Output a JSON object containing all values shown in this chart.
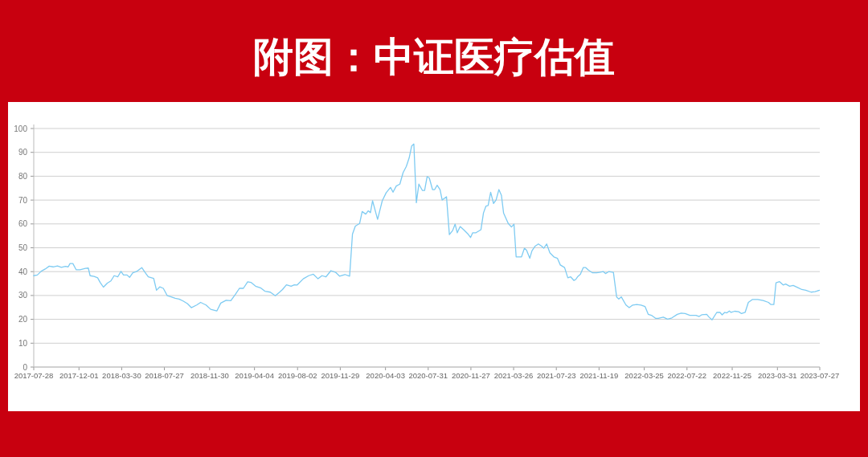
{
  "chart_data": {
    "type": "line",
    "title": "附图：中证医疗估值",
    "xlim": [
      "2017-07-28",
      "2023-07-27"
    ],
    "xticks": [
      "2017-07-28",
      "2017-12-01",
      "2018-03-30",
      "2018-07-27",
      "2018-11-30",
      "2019-04-04",
      "2019-08-02",
      "2019-11-29",
      "2020-04-03",
      "2020-07-31",
      "2020-11-27",
      "2021-03-26",
      "2021-07-23",
      "2021-11-19",
      "2022-03-25",
      "2022-07-22",
      "2022-11-25",
      "2023-03-31",
      "2023-07-27"
    ],
    "ylim": [
      0,
      100
    ],
    "yticks": [
      0,
      10,
      20,
      30,
      40,
      50,
      60,
      70,
      80,
      90,
      100
    ],
    "grid": "y",
    "x": [
      "2017-07-28",
      "2017-08-07",
      "2017-08-18",
      "2017-08-29",
      "2017-09-09",
      "2017-09-20",
      "2017-10-02",
      "2017-10-13",
      "2017-10-24",
      "2017-11-01",
      "2017-11-06",
      "2017-11-14",
      "2017-11-23",
      "2017-12-04",
      "2017-12-19",
      "2017-12-27",
      "2018-01-01",
      "2018-01-12",
      "2018-01-22",
      "2018-01-29",
      "2018-02-07",
      "2018-02-18",
      "2018-02-28",
      "2018-03-09",
      "2018-03-19",
      "2018-03-28",
      "2018-04-04",
      "2018-04-14",
      "2018-04-21",
      "2018-04-30",
      "2018-05-10",
      "2018-05-25",
      "2018-06-03",
      "2018-06-12",
      "2018-06-27",
      "2018-07-05",
      "2018-07-14",
      "2018-07-24",
      "2018-08-04",
      "2018-08-15",
      "2018-08-26",
      "2018-09-06",
      "2018-09-17",
      "2018-09-29",
      "2018-10-10",
      "2018-10-25",
      "2018-11-05",
      "2018-11-20",
      "2018-12-03",
      "2018-12-20",
      "2018-12-31",
      "2019-01-15",
      "2019-01-28",
      "2019-02-10",
      "2019-02-21",
      "2019-03-04",
      "2019-03-16",
      "2019-03-25",
      "2019-04-07",
      "2019-04-22",
      "2019-05-03",
      "2019-05-18",
      "2019-06-01",
      "2019-06-13",
      "2019-06-21",
      "2019-07-02",
      "2019-07-15",
      "2019-07-24",
      "2019-08-01",
      "2019-08-18",
      "2019-09-02",
      "2019-09-15",
      "2019-09-28",
      "2019-10-09",
      "2019-10-20",
      "2019-11-03",
      "2019-11-16",
      "2019-11-27",
      "2019-12-12",
      "2019-12-25",
      "2020-01-02",
      "2020-01-10",
      "2020-01-22",
      "2020-01-29",
      "2020-02-08",
      "2020-02-15",
      "2020-02-21",
      "2020-02-27",
      "2020-03-12",
      "2020-03-25",
      "2020-04-05",
      "2020-04-17",
      "2020-04-24",
      "2020-05-03",
      "2020-05-13",
      "2020-05-22",
      "2020-05-31",
      "2020-06-08",
      "2020-06-15",
      "2020-06-21",
      "2020-06-28",
      "2020-07-05",
      "2020-07-15",
      "2020-07-21",
      "2020-07-28",
      "2020-08-03",
      "2020-08-12",
      "2020-08-18",
      "2020-08-25",
      "2020-09-02",
      "2020-09-08",
      "2020-09-20",
      "2020-09-28",
      "2020-10-07",
      "2020-10-14",
      "2020-10-20",
      "2020-10-28",
      "2020-11-08",
      "2020-11-18",
      "2020-11-26",
      "2020-12-02",
      "2020-12-11",
      "2020-12-25",
      "2021-01-01",
      "2021-01-08",
      "2021-01-14",
      "2021-01-21",
      "2021-01-29",
      "2021-02-05",
      "2021-02-13",
      "2021-02-20",
      "2021-02-26",
      "2021-03-11",
      "2021-03-20",
      "2021-03-27",
      "2021-04-02",
      "2021-04-17",
      "2021-04-25",
      "2021-05-01",
      "2021-05-10",
      "2021-05-16",
      "2021-05-25",
      "2021-06-03",
      "2021-06-12",
      "2021-06-18",
      "2021-06-26",
      "2021-07-05",
      "2021-07-16",
      "2021-07-26",
      "2021-08-03",
      "2021-08-15",
      "2021-08-24",
      "2021-09-01",
      "2021-09-10",
      "2021-09-15",
      "2021-09-21",
      "2021-09-28",
      "2021-10-06",
      "2021-10-13",
      "2021-10-21",
      "2021-11-01",
      "2021-11-12",
      "2021-11-20",
      "2021-12-01",
      "2021-12-07",
      "2021-12-16",
      "2021-12-29",
      "2022-01-07",
      "2022-01-13",
      "2022-01-20",
      "2022-02-02",
      "2022-02-11",
      "2022-02-21",
      "2022-03-04",
      "2022-03-16",
      "2022-03-27",
      "2022-04-05",
      "2022-04-14",
      "2022-04-26",
      "2022-05-03",
      "2022-05-17",
      "2022-05-29",
      "2022-06-10",
      "2022-06-25",
      "2022-07-06",
      "2022-07-17",
      "2022-07-30",
      "2022-08-16",
      "2022-08-25",
      "2022-09-01",
      "2022-09-15",
      "2022-09-21",
      "2022-09-30",
      "2022-10-13",
      "2022-10-22",
      "2022-10-28",
      "2022-11-04",
      "2022-11-10",
      "2022-11-17",
      "2022-11-22",
      "2022-12-02",
      "2022-12-13",
      "2022-12-21",
      "2022-12-31",
      "2023-01-09",
      "2023-01-20",
      "2023-02-04",
      "2023-02-19",
      "2023-03-06",
      "2023-03-13",
      "2023-03-21",
      "2023-03-27",
      "2023-04-06",
      "2023-04-16",
      "2023-04-23",
      "2023-05-04",
      "2023-05-14",
      "2023-05-27",
      "2023-06-07",
      "2023-06-18",
      "2023-07-03",
      "2023-07-14",
      "2023-07-26"
    ],
    "series": [
      {
        "color": "#7ecbf2",
        "values": [
          38.3,
          38.6,
          40.2,
          41.1,
          42.3,
          42,
          42.4,
          41.8,
          42.2,
          42,
          43.4,
          43.4,
          40.8,
          40.8,
          41.4,
          41.5,
          38.3,
          38,
          37.4,
          35.5,
          33.5,
          35.2,
          36.1,
          38.3,
          37.8,
          40.1,
          38.6,
          38.6,
          37.6,
          39.5,
          40,
          41.7,
          39.7,
          37.8,
          37.2,
          32.2,
          33.6,
          33,
          29.9,
          29.4,
          28.8,
          28.5,
          27.7,
          26.6,
          24.9,
          26,
          27.1,
          26,
          24.2,
          23.5,
          26.8,
          28,
          27.8,
          30.5,
          33,
          33,
          35.7,
          35.5,
          33.9,
          33.1,
          31.8,
          31.4,
          29.9,
          31.4,
          32.5,
          34.5,
          33.9,
          34.5,
          34.4,
          37,
          38.3,
          38.9,
          37,
          38.3,
          37.8,
          40.4,
          39.7,
          38.1,
          38.8,
          38.1,
          55.7,
          59.1,
          60.2,
          65.2,
          64.1,
          65.5,
          64.7,
          69.7,
          61.9,
          69.7,
          73.1,
          75.3,
          73.3,
          75.9,
          76.7,
          81.5,
          84.1,
          87.7,
          92.7,
          93.5,
          68.9,
          76.7,
          74,
          74,
          79.8,
          79.3,
          74.4,
          74.4,
          76.2,
          74.4,
          70,
          71.4,
          55.5,
          57.2,
          59.9,
          56.3,
          58.9,
          57.4,
          55.9,
          54.3,
          56.3,
          56.3,
          57.6,
          64.6,
          67.5,
          67.7,
          73.3,
          68.6,
          70,
          74.4,
          72,
          64.6,
          60.2,
          58.7,
          59.9,
          46.2,
          46.2,
          49.8,
          49,
          45.6,
          48.7,
          50.7,
          51.6,
          50.7,
          49.8,
          51.6,
          47.9,
          46.2,
          45.6,
          42.8,
          41.7,
          37.4,
          37.8,
          36.3,
          36.7,
          38,
          38.9,
          41.7,
          41.7,
          40.6,
          39.5,
          39.5,
          39.7,
          40,
          39.2,
          40,
          39.7,
          29.4,
          28.5,
          29.4,
          26,
          24.9,
          26,
          26.2,
          26,
          25.4,
          22.1,
          21.7,
          20.4,
          20.4,
          20.9,
          20.1,
          20.6,
          22.1,
          22.6,
          22.4,
          21.7,
          21.7,
          21.2,
          21.9,
          22.1,
          21,
          19.8,
          22.9,
          22.9,
          21.9,
          22.9,
          22.7,
          23.5,
          22.9,
          23.4,
          23.2,
          22.4,
          22.9,
          27.1,
          28.3,
          28.3,
          27.9,
          27.1,
          26.2,
          26.2,
          35.3,
          35.8,
          34.4,
          34.8,
          33.9,
          34.2,
          33.3,
          32.5,
          32.2,
          31.4,
          31.6,
          32.2
        ]
      }
    ]
  }
}
